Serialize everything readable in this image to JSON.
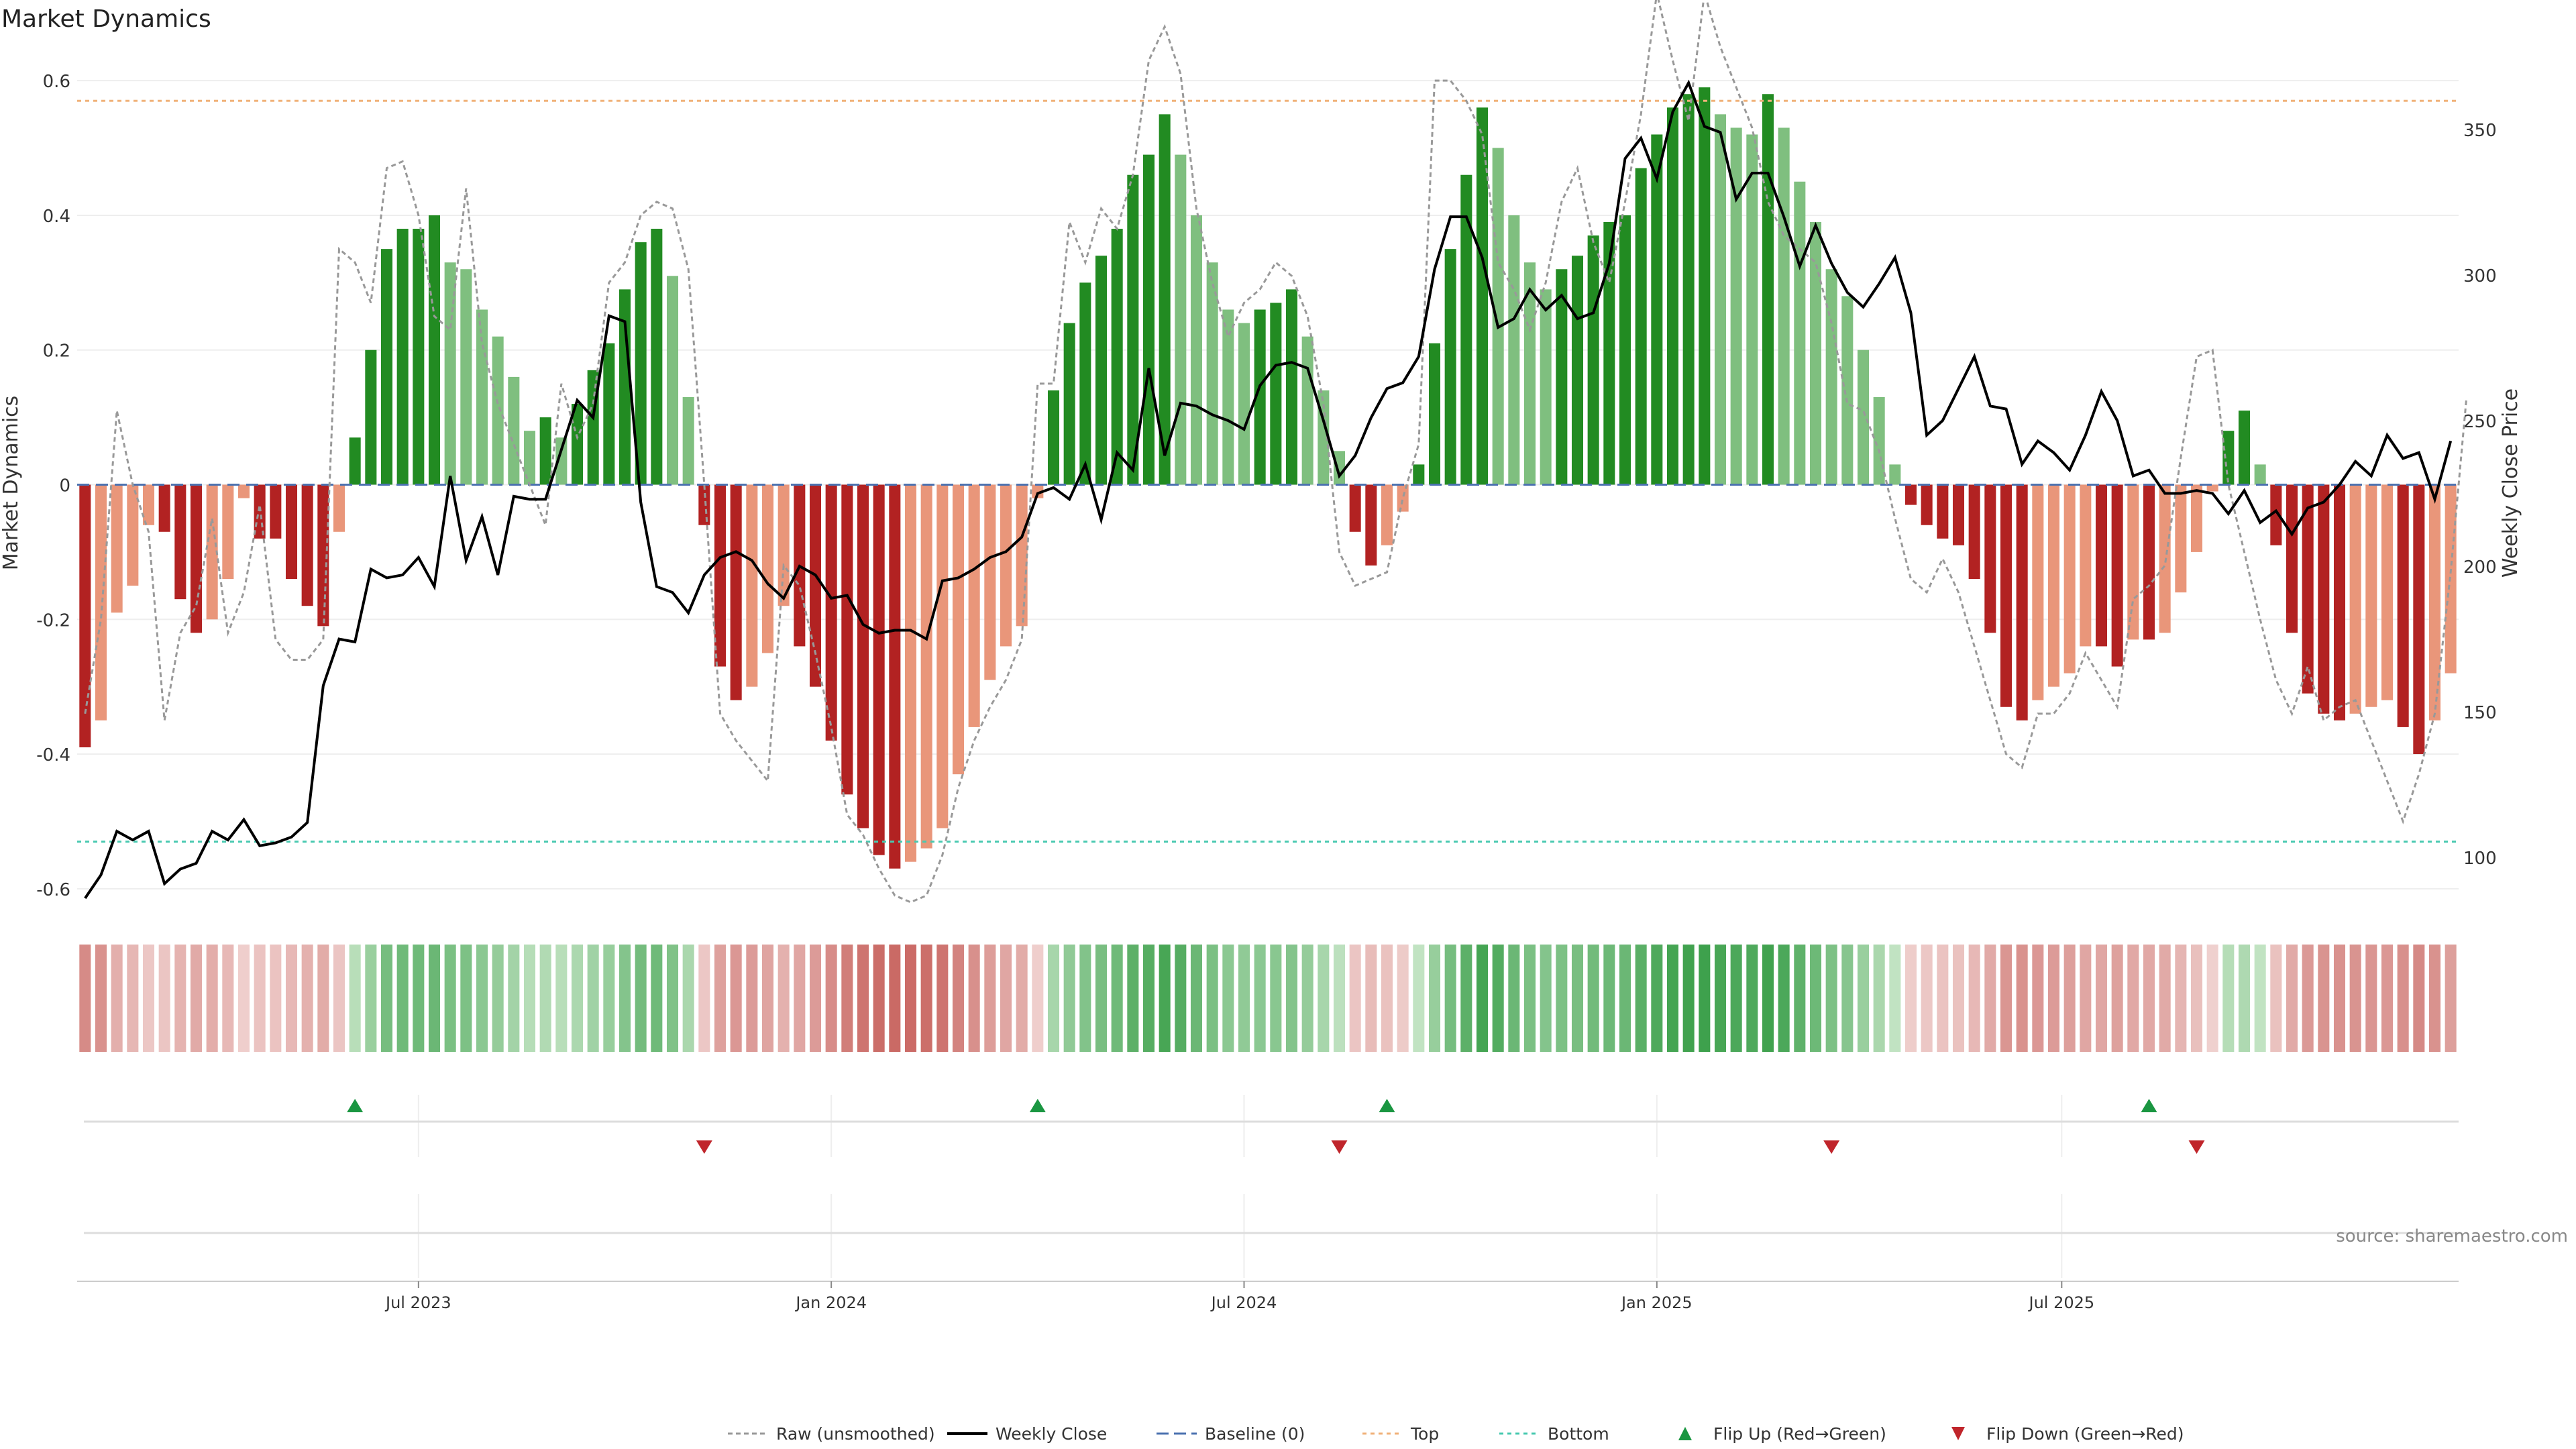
{
  "chart_data": {
    "type": "bar",
    "title": "Market Dynamics",
    "ylabel": "Market Dynamics",
    "y2label": "Weekly Close Price",
    "ylim": [
      -0.64,
      0.64
    ],
    "y2lim": [
      80,
      376
    ],
    "yticks": [
      "-0.6",
      "-0.4",
      "-0.2",
      "0",
      "0.2",
      "0.4",
      "0.6"
    ],
    "y2ticks": [
      "100",
      "150",
      "200",
      "250",
      "300",
      "350"
    ],
    "xticks": [
      "Jul 2023",
      "Jan 2024",
      "Jul 2024",
      "Jan 2025",
      "Jul 2025"
    ],
    "xtick_weeks": [
      21.5,
      47.5,
      73.5,
      99.5,
      125.0
    ],
    "top_level": 0.57,
    "bottom_level": -0.53,
    "baseline": 0,
    "values": [
      -0.39,
      -0.35,
      -0.19,
      -0.15,
      -0.06,
      -0.07,
      -0.17,
      -0.22,
      -0.2,
      -0.14,
      -0.02,
      -0.08,
      -0.08,
      -0.14,
      -0.18,
      -0.21,
      -0.07,
      0.07,
      0.2,
      0.35,
      0.38,
      0.38,
      0.4,
      0.33,
      0.32,
      0.26,
      0.22,
      0.16,
      0.08,
      0.1,
      0.07,
      0.12,
      0.17,
      0.21,
      0.29,
      0.36,
      0.38,
      0.31,
      0.13,
      -0.06,
      -0.27,
      -0.32,
      -0.3,
      -0.25,
      -0.18,
      -0.24,
      -0.3,
      -0.38,
      -0.46,
      -0.51,
      -0.55,
      -0.57,
      -0.56,
      -0.54,
      -0.51,
      -0.43,
      -0.36,
      -0.29,
      -0.24,
      -0.21,
      -0.02,
      0.14,
      0.24,
      0.3,
      0.34,
      0.38,
      0.46,
      0.49,
      0.55,
      0.49,
      0.4,
      0.33,
      0.26,
      0.24,
      0.26,
      0.27,
      0.29,
      0.22,
      0.14,
      0.05,
      -0.07,
      -0.12,
      -0.09,
      -0.04,
      0.03,
      0.21,
      0.35,
      0.46,
      0.56,
      0.5,
      0.4,
      0.33,
      0.29,
      0.32,
      0.34,
      0.37,
      0.39,
      0.4,
      0.47,
      0.52,
      0.56,
      0.58,
      0.59,
      0.55,
      0.53,
      0.52,
      0.58,
      0.53,
      0.45,
      0.39,
      0.32,
      0.28,
      0.2,
      0.13,
      0.03,
      -0.03,
      -0.06,
      -0.08,
      -0.09,
      -0.14,
      -0.22,
      -0.33,
      -0.35,
      -0.32,
      -0.3,
      -0.28,
      -0.24,
      -0.24,
      -0.27,
      -0.23,
      -0.23,
      -0.22,
      -0.16,
      -0.1,
      -0.01,
      0.08,
      0.11,
      0.03,
      -0.09,
      -0.22,
      -0.31,
      -0.34,
      -0.35,
      -0.34,
      -0.33,
      -0.32,
      -0.36,
      -0.4,
      -0.35,
      -0.28
    ],
    "bar_colors": {
      "rising_positive": "#228b22",
      "falling_positive": "#7fbf7f",
      "falling_negative": "#b22222",
      "rising_negative": "#e9967a"
    },
    "series": [
      {
        "name": "Raw (unsmoothed)",
        "color": "#999999",
        "values": [
          -0.34,
          -0.2,
          0.11,
          0.0,
          -0.07,
          -0.35,
          -0.22,
          -0.18,
          -0.05,
          -0.22,
          -0.16,
          -0.03,
          -0.23,
          -0.26,
          -0.26,
          -0.23,
          0.35,
          0.33,
          0.27,
          0.47,
          0.48,
          0.4,
          0.25,
          0.23,
          0.44,
          0.21,
          0.12,
          0.06,
          0.0,
          -0.06,
          0.15,
          0.07,
          0.12,
          0.3,
          0.33,
          0.4,
          0.42,
          0.41,
          0.32,
          0.0,
          -0.34,
          -0.38,
          -0.41,
          -0.44,
          -0.12,
          -0.15,
          -0.25,
          -0.36,
          -0.49,
          -0.52,
          -0.57,
          -0.61,
          -0.62,
          -0.61,
          -0.55,
          -0.45,
          -0.38,
          -0.33,
          -0.29,
          -0.23,
          0.15,
          0.15,
          0.39,
          0.33,
          0.41,
          0.38,
          0.46,
          0.63,
          0.68,
          0.61,
          0.41,
          0.3,
          0.22,
          0.27,
          0.29,
          0.33,
          0.31,
          0.25,
          0.12,
          -0.1,
          -0.15,
          -0.14,
          -0.13,
          -0.02,
          0.06,
          0.6,
          0.6,
          0.57,
          0.52,
          0.33,
          0.29,
          0.23,
          0.3,
          0.42,
          0.47,
          0.36,
          0.3,
          0.42,
          0.55,
          0.73,
          0.63,
          0.54,
          0.73,
          0.65,
          0.59,
          0.53,
          0.42,
          0.37,
          0.35,
          0.33,
          0.24,
          0.12,
          0.11,
          0.05,
          -0.05,
          -0.14,
          -0.16,
          -0.11,
          -0.16,
          -0.24,
          -0.32,
          -0.4,
          -0.42,
          -0.34,
          -0.34,
          -0.31,
          -0.25,
          -0.29,
          -0.33,
          -0.17,
          -0.15,
          -0.12,
          0.04,
          0.19,
          0.2,
          0.0,
          -0.1,
          -0.2,
          -0.29,
          -0.34,
          -0.27,
          -0.35,
          -0.33,
          -0.32,
          -0.38,
          -0.44,
          -0.5,
          -0.43,
          -0.34,
          -0.13,
          0.13
        ]
      },
      {
        "name": "Weekly Close",
        "color": "#000000",
        "values": [
          86,
          94,
          109,
          106,
          109,
          91,
          96,
          98,
          109,
          106,
          113,
          104,
          105,
          107,
          112,
          159,
          175,
          174,
          199,
          196,
          197,
          203,
          193,
          231,
          202,
          217,
          197,
          224,
          223,
          223,
          240,
          257,
          251,
          286,
          284,
          222,
          193,
          191,
          184,
          197,
          203,
          205,
          202,
          194,
          189,
          200,
          197,
          189,
          190,
          180,
          177,
          178,
          178,
          175,
          195,
          196,
          199,
          203,
          205,
          210,
          225,
          227,
          223,
          235,
          216,
          239,
          233,
          268,
          238,
          256,
          255,
          252,
          250,
          247,
          262,
          269,
          270,
          268,
          250,
          231,
          238,
          251,
          261,
          263,
          272,
          302,
          320,
          320,
          306,
          282,
          285,
          295,
          288,
          293,
          285,
          287,
          304,
          340,
          347,
          333,
          356,
          366,
          351,
          349,
          326,
          335,
          335,
          320,
          303,
          317,
          304,
          294,
          289,
          297,
          306,
          287,
          245,
          250,
          261,
          272,
          255,
          254,
          235,
          243,
          239,
          233,
          245,
          260,
          250,
          231,
          233,
          225,
          225,
          226,
          225,
          218,
          226,
          215,
          219,
          211,
          220,
          222,
          228,
          236,
          231,
          245,
          237,
          239,
          223,
          243
        ]
      },
      {
        "name": "Baseline (0)",
        "color": "#4c72b0"
      },
      {
        "name": "Top",
        "color": "#f0b27a"
      },
      {
        "name": "Bottom",
        "color": "#48c9b0"
      }
    ],
    "flip_up_weeks": [
      17,
      60,
      82,
      130
    ],
    "flip_down_weeks": [
      39,
      79,
      110,
      133
    ],
    "flip_up_label": "Flip Up (Red→Green)",
    "flip_down_label": "Flip Down (Green→Red)",
    "flip_up_color": "#1a9641",
    "flip_down_color": "#c0252b"
  },
  "source_text": "source: sharemaestro.com"
}
